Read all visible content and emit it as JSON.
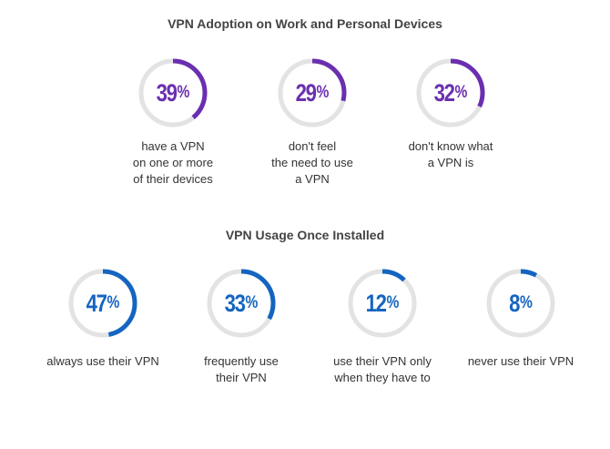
{
  "colors": {
    "purple": "#6a2fb0",
    "blue": "#1565c0",
    "track": "#e3e3e3"
  },
  "chart_data": [
    {
      "type": "donut",
      "title": "VPN Adoption on Work and Personal Devices",
      "color": "#6a2fb0",
      "items": [
        {
          "value": 39,
          "label": "39%",
          "caption": [
            "have a VPN",
            "on one or more",
            "of their devices"
          ]
        },
        {
          "value": 29,
          "label": "29%",
          "caption": [
            "don't feel",
            "the need to use",
            "a VPN"
          ]
        },
        {
          "value": 32,
          "label": "32%",
          "caption": [
            "don't know what",
            "a VPN is"
          ]
        }
      ]
    },
    {
      "type": "donut",
      "title": "VPN Usage Once Installed",
      "color": "#1565c0",
      "items": [
        {
          "value": 47,
          "label": "47%",
          "caption": [
            "always use their VPN"
          ]
        },
        {
          "value": 33,
          "label": "33%",
          "caption": [
            "frequently use",
            "their VPN"
          ]
        },
        {
          "value": 12,
          "label": "12%",
          "caption": [
            "use their VPN only",
            "when they have to"
          ]
        },
        {
          "value": 8,
          "label": "8%",
          "caption": [
            "never use their VPN"
          ]
        }
      ]
    }
  ]
}
